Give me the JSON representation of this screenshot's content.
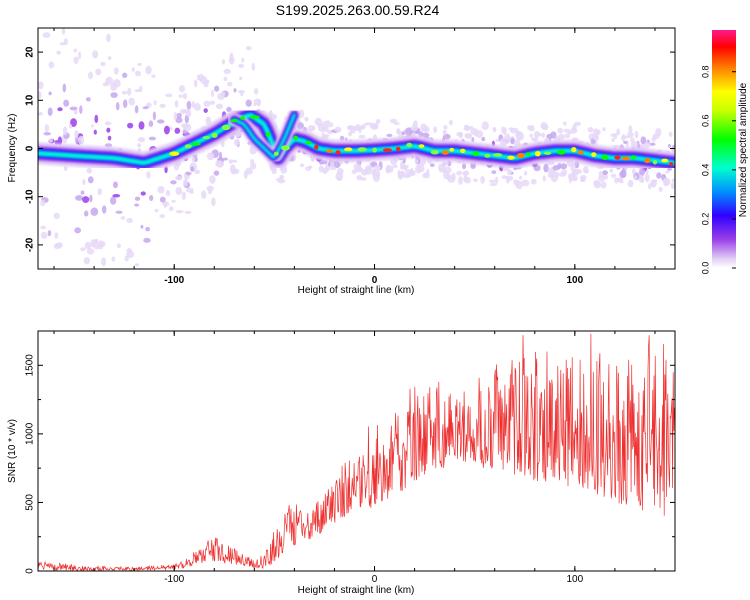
{
  "title": "S199.2025.263.00.59.R24",
  "chart_data": [
    {
      "type": "heatmap",
      "name": "spectrogram",
      "xlabel": "Height of straight line (km)",
      "ylabel": "Frequency (Hz)",
      "xlim": [
        -168,
        150
      ],
      "ylim": [
        -25,
        25
      ],
      "xticks": [
        -100,
        0,
        100
      ],
      "yticks": [
        -20,
        -10,
        0,
        10,
        20
      ],
      "colorbar": {
        "label": "Normalized spectral amplitude",
        "range": [
          0.0,
          0.97
        ],
        "ticks": [
          0.0,
          0.2,
          0.4,
          0.6,
          0.8
        ],
        "tick_labels": [
          "0.0",
          "0.2",
          "0.4",
          "0.6",
          "0.8"
        ],
        "colormap": [
          "#ffffff",
          "#e8d8f8",
          "#8a2be2",
          "#3000ff",
          "#00a0ff",
          "#00ffd0",
          "#00ff00",
          "#ffff00",
          "#ff8000",
          "#ff0000",
          "#ff1493"
        ]
      },
      "ridge": {
        "description": "main frequency trace",
        "x": [
          -168,
          -150,
          -130,
          -115,
          -100,
          -90,
          -80,
          -72,
          -68,
          -62,
          -55,
          -48,
          -45,
          -40,
          -35,
          -28,
          -20,
          -10,
          0,
          10,
          20,
          30,
          40,
          50,
          60,
          70,
          80,
          90,
          100,
          110,
          120,
          130,
          140,
          150
        ],
        "y": [
          -1,
          -1.5,
          -2,
          -3,
          -1,
          1,
          3,
          5,
          6,
          7,
          5,
          -2,
          0,
          2,
          1.5,
          0,
          -0.5,
          -0.5,
          -0.3,
          0,
          0.5,
          -0.5,
          -0.5,
          -1,
          -1.5,
          -2,
          -1,
          -0.5,
          -0.5,
          -1.5,
          -2,
          -2,
          -2.5,
          -3
        ]
      },
      "ridge2": {
        "description": "secondary branch",
        "x": [
          -70,
          -65,
          -60,
          -55,
          -50,
          -45,
          -40
        ],
        "y": [
          6,
          5,
          2,
          0,
          -2,
          2,
          7
        ]
      }
    },
    {
      "type": "line",
      "name": "snr",
      "xlabel": "Height of straight line (km)",
      "ylabel": "SNR (10 * v/v)",
      "xlim": [
        -168,
        150
      ],
      "ylim": [
        0,
        1750
      ],
      "xticks": [
        -100,
        0,
        100
      ],
      "yticks": [
        0,
        500,
        1000,
        1500
      ],
      "color": "#ee3030",
      "envelope": {
        "x": [
          -168,
          -140,
          -120,
          -100,
          -95,
          -90,
          -85,
          -80,
          -75,
          -70,
          -65,
          -60,
          -55,
          -50,
          -45,
          -40,
          -35,
          -30,
          -25,
          -20,
          -15,
          -10,
          -5,
          0,
          5,
          10,
          15,
          20,
          25,
          30,
          35,
          40,
          45,
          50,
          60,
          70,
          80,
          90,
          100,
          110,
          120,
          130,
          140,
          150
        ],
        "low": [
          5,
          3,
          3,
          10,
          20,
          40,
          60,
          70,
          60,
          50,
          30,
          20,
          20,
          60,
          120,
          180,
          220,
          240,
          300,
          350,
          400,
          450,
          480,
          450,
          500,
          520,
          600,
          650,
          700,
          750,
          750,
          800,
          800,
          750,
          750,
          700,
          650,
          650,
          600,
          550,
          500,
          450,
          400,
          400
        ],
        "high": [
          70,
          40,
          30,
          50,
          80,
          150,
          220,
          280,
          230,
          180,
          120,
          90,
          150,
          300,
          450,
          550,
          480,
          500,
          600,
          750,
          800,
          850,
          1050,
          1100,
          1050,
          1150,
          1300,
          1400,
          1450,
          1350,
          1350,
          1400,
          1400,
          1450,
          1500,
          1600,
          1650,
          1550,
          1600,
          1700,
          1600,
          1550,
          1700,
          1650
        ]
      },
      "peaks": [
        {
          "x": 74,
          "y": 1720
        },
        {
          "x": 108,
          "y": 1730
        },
        {
          "x": 137,
          "y": 1720
        },
        {
          "x": 86,
          "y": 1600
        },
        {
          "x": 32,
          "y": 1380
        }
      ]
    }
  ]
}
